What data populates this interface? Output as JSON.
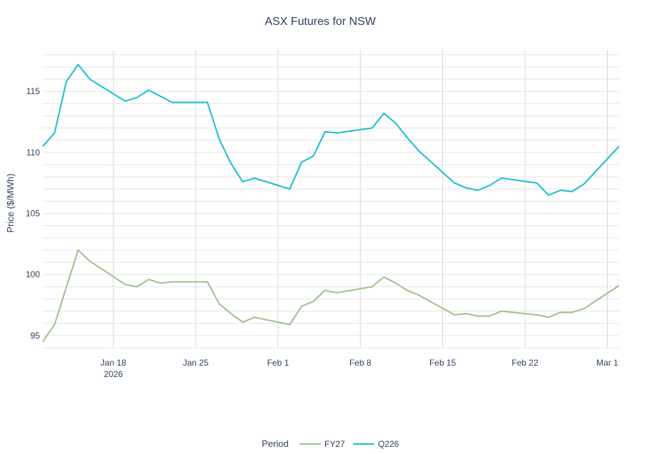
{
  "chart_data": {
    "type": "line",
    "title": "ASX Futures for NSW",
    "xlabel": "",
    "ylabel": "Price ($/MWh)",
    "x_axis_type": "date",
    "xlim": [
      "2026-01-12",
      "2026-03-02"
    ],
    "ylim": [
      94,
      118.4
    ],
    "y_ticks": [
      95,
      100,
      105,
      110,
      115
    ],
    "y_tick_labels": [
      "95",
      "100",
      "105",
      "110",
      "115"
    ],
    "x_ticks": [
      "2026-01-18",
      "2026-01-25",
      "2026-02-01",
      "2026-02-08",
      "2026-02-15",
      "2026-02-22",
      "2026-03-01"
    ],
    "x_tick_labels": [
      "Jan 18",
      "Jan 25",
      "Feb 1",
      "Feb 8",
      "Feb 15",
      "Feb 22",
      "Mar 1"
    ],
    "x_tick_sublabel": "2026",
    "grid": true,
    "legend": {
      "title": "Period",
      "placement": "bottom-center",
      "orientation": "horizontal"
    },
    "series": [
      {
        "name": "FY27",
        "color": "#9dc08b",
        "points": [
          {
            "x": "2026-01-12",
            "y": 94.5
          },
          {
            "x": "2026-01-13",
            "y": 95.9
          },
          {
            "x": "2026-01-15",
            "y": 102.0
          },
          {
            "x": "2026-01-16",
            "y": 101.1
          },
          {
            "x": "2026-01-19",
            "y": 99.2
          },
          {
            "x": "2026-01-20",
            "y": 99.0
          },
          {
            "x": "2026-01-21",
            "y": 99.6
          },
          {
            "x": "2026-01-22",
            "y": 99.3
          },
          {
            "x": "2026-01-23",
            "y": 99.4
          },
          {
            "x": "2026-01-26",
            "y": 99.4
          },
          {
            "x": "2026-01-27",
            "y": 97.6
          },
          {
            "x": "2026-01-28",
            "y": 96.8
          },
          {
            "x": "2026-01-29",
            "y": 96.1
          },
          {
            "x": "2026-01-30",
            "y": 96.5
          },
          {
            "x": "2026-02-02",
            "y": 95.9
          },
          {
            "x": "2026-02-03",
            "y": 97.4
          },
          {
            "x": "2026-02-04",
            "y": 97.8
          },
          {
            "x": "2026-02-05",
            "y": 98.7
          },
          {
            "x": "2026-02-06",
            "y": 98.5
          },
          {
            "x": "2026-02-09",
            "y": 99.0
          },
          {
            "x": "2026-02-10",
            "y": 99.8
          },
          {
            "x": "2026-02-11",
            "y": 99.3
          },
          {
            "x": "2026-02-12",
            "y": 98.7
          },
          {
            "x": "2026-02-13",
            "y": 98.3
          },
          {
            "x": "2026-02-16",
            "y": 96.7
          },
          {
            "x": "2026-02-17",
            "y": 96.8
          },
          {
            "x": "2026-02-18",
            "y": 96.6
          },
          {
            "x": "2026-02-19",
            "y": 96.6
          },
          {
            "x": "2026-02-20",
            "y": 97.0
          },
          {
            "x": "2026-02-23",
            "y": 96.7
          },
          {
            "x": "2026-02-24",
            "y": 96.5
          },
          {
            "x": "2026-02-25",
            "y": 96.9
          },
          {
            "x": "2026-02-26",
            "y": 96.9
          },
          {
            "x": "2026-02-27",
            "y": 97.2
          },
          {
            "x": "2026-03-02",
            "y": 99.1
          }
        ]
      },
      {
        "name": "Q226",
        "color": "#17becf",
        "points": [
          {
            "x": "2026-01-12",
            "y": 110.5
          },
          {
            "x": "2026-01-13",
            "y": 111.6
          },
          {
            "x": "2026-01-14",
            "y": 115.8
          },
          {
            "x": "2026-01-15",
            "y": 117.2
          },
          {
            "x": "2026-01-16",
            "y": 116.0
          },
          {
            "x": "2026-01-19",
            "y": 114.2
          },
          {
            "x": "2026-01-20",
            "y": 114.5
          },
          {
            "x": "2026-01-21",
            "y": 115.1
          },
          {
            "x": "2026-01-23",
            "y": 114.1
          },
          {
            "x": "2026-01-26",
            "y": 114.1
          },
          {
            "x": "2026-01-27",
            "y": 111.1
          },
          {
            "x": "2026-01-28",
            "y": 109.1
          },
          {
            "x": "2026-01-29",
            "y": 107.6
          },
          {
            "x": "2026-01-30",
            "y": 107.9
          },
          {
            "x": "2026-02-02",
            "y": 107.0
          },
          {
            "x": "2026-02-03",
            "y": 109.2
          },
          {
            "x": "2026-02-04",
            "y": 109.7
          },
          {
            "x": "2026-02-05",
            "y": 111.7
          },
          {
            "x": "2026-02-06",
            "y": 111.6
          },
          {
            "x": "2026-02-09",
            "y": 112.0
          },
          {
            "x": "2026-02-10",
            "y": 113.2
          },
          {
            "x": "2026-02-11",
            "y": 112.4
          },
          {
            "x": "2026-02-12",
            "y": 111.2
          },
          {
            "x": "2026-02-13",
            "y": 110.1
          },
          {
            "x": "2026-02-16",
            "y": 107.5
          },
          {
            "x": "2026-02-17",
            "y": 107.1
          },
          {
            "x": "2026-02-18",
            "y": 106.9
          },
          {
            "x": "2026-02-19",
            "y": 107.3
          },
          {
            "x": "2026-02-20",
            "y": 107.9
          },
          {
            "x": "2026-02-23",
            "y": 107.5
          },
          {
            "x": "2026-02-24",
            "y": 106.5
          },
          {
            "x": "2026-02-25",
            "y": 106.9
          },
          {
            "x": "2026-02-26",
            "y": 106.8
          },
          {
            "x": "2026-02-27",
            "y": 107.4
          },
          {
            "x": "2026-03-02",
            "y": 110.5
          }
        ]
      }
    ]
  }
}
